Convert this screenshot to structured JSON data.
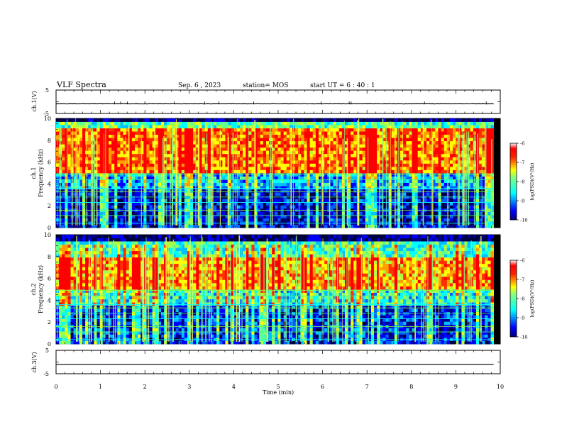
{
  "header": {
    "title": "VLF Spectra",
    "date": "Sep. 6 , 2023",
    "station": "station= MOS",
    "start": "start UT =  6 : 40 : 1"
  },
  "axes": {
    "ch1_voltage_label": "ch.1(V)",
    "ch1_freq_label": "ch.1\nFrequency (kHz)",
    "ch2_freq_label": "ch.2\nFrequency (kHz)",
    "ch3_voltage_label": "ch.3(V)",
    "time_label": "Time  (min)",
    "colorbar_label": "log(PSD)(V²/Hz)"
  },
  "chart_data": [
    {
      "type": "line",
      "name": "ch1-voltage",
      "ylabel": "ch.1(V)",
      "ylim": [
        -5,
        5
      ],
      "yticks": [
        "5",
        "-5"
      ],
      "xlim": [
        0,
        10
      ],
      "level": -0.8
    },
    {
      "type": "heatmap",
      "name": "ch1-spectrogram",
      "ylabel": "Frequency (kHz)",
      "ylim": [
        0,
        10
      ],
      "yticks": [
        "0",
        "2",
        "4",
        "6",
        "8",
        "10"
      ],
      "xlim": [
        0,
        10
      ],
      "data_end_min": 9.85,
      "clim": [
        -10,
        -6
      ],
      "colorbar_ticks": [
        "-6",
        "-7",
        "-8",
        "-9",
        "-10"
      ]
    },
    {
      "type": "heatmap",
      "name": "ch2-spectrogram",
      "ylabel": "Frequency (kHz)",
      "ylim": [
        0,
        10
      ],
      "yticks": [
        "0",
        "2",
        "4",
        "6",
        "8",
        "10"
      ],
      "xlim": [
        0,
        10
      ],
      "data_end_min": 9.85,
      "clim": [
        -10,
        -6
      ],
      "colorbar_ticks": [
        "-6",
        "-7",
        "-8",
        "-9",
        "-10"
      ]
    },
    {
      "type": "line",
      "name": "ch3-voltage",
      "ylabel": "ch.3(V)",
      "ylim": [
        -5,
        5
      ],
      "yticks": [
        "5",
        "-5"
      ],
      "xlim": [
        0,
        10
      ],
      "level": -1.0
    }
  ],
  "time_ticks": [
    "0",
    "1",
    "2",
    "3",
    "4",
    "5",
    "6",
    "7",
    "8",
    "9",
    "10"
  ],
  "colors": {
    "jet": [
      "#00008f",
      "#0000ff",
      "#0080ff",
      "#00ffff",
      "#80ff80",
      "#ffff00",
      "#ff8000",
      "#ff0000",
      "#800000"
    ]
  }
}
